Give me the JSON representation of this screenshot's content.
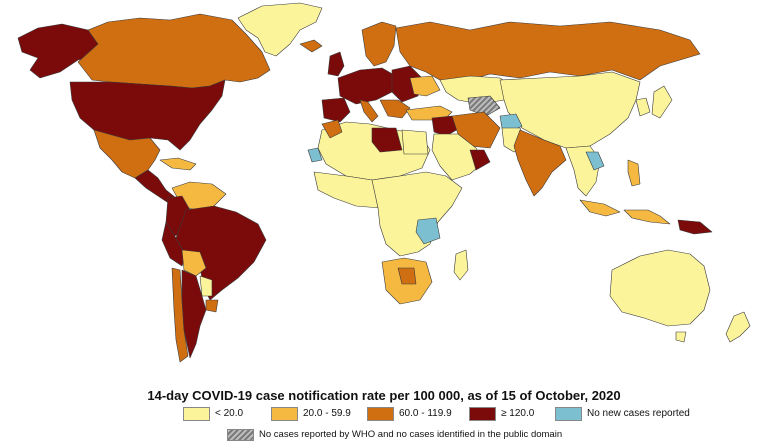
{
  "title": "14-day COVID-19 case notification rate per 100 000, as of 15 of October, 2020",
  "colors": {
    "lt20": "#fbf49b",
    "c20_60": "#f5b942",
    "c60_120": "#d06e12",
    "ge120": "#7b0b0b",
    "none": "#7cbfd0",
    "ocean": "#ffffff",
    "border": "#3a3a3a"
  },
  "legend": [
    {
      "label": "< 20.0",
      "color": "#fbf49b"
    },
    {
      "label": "20.0 - 59.9",
      "color": "#f5b942"
    },
    {
      "label": "60.0 - 119.9",
      "color": "#d06e12"
    },
    {
      "label": "≥ 120.0",
      "color": "#7b0b0b"
    },
    {
      "label": "No new cases reported",
      "color": "#7cbfd0"
    }
  ],
  "hatch_label": "No cases reported by WHO and no cases identified in the public domain"
}
